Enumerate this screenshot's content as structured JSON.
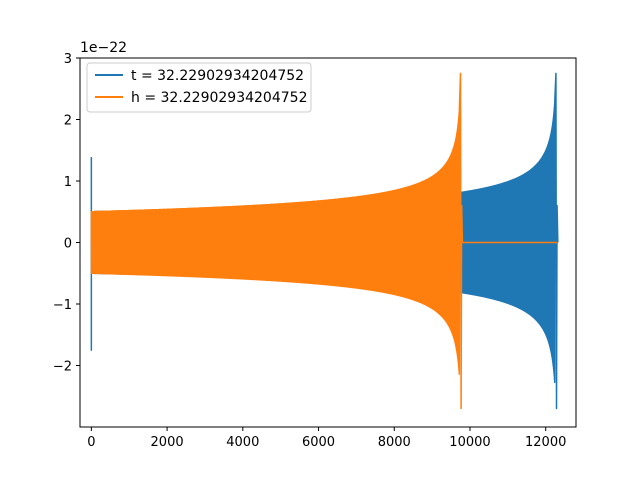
{
  "chart_data": {
    "type": "line",
    "title": "",
    "xlabel": "",
    "ylabel": "",
    "offset_text": "1e−22",
    "xlim": [
      -300,
      12800
    ],
    "ylim": [
      -3.0,
      3.0
    ],
    "xticks": [
      0,
      2000,
      4000,
      6000,
      8000,
      10000,
      12000
    ],
    "xtick_labels": [
      "0",
      "2000",
      "4000",
      "6000",
      "8000",
      "10000",
      "12000"
    ],
    "yticks": [
      -2,
      -1,
      0,
      1,
      2,
      3
    ],
    "ytick_labels": [
      "−2",
      "−1",
      "0",
      "1",
      "2",
      "3"
    ],
    "grid": false,
    "legend": {
      "placement": "upper-left",
      "entries": [
        "t = 32.22902934204752",
        "h = 32.22902934204752"
      ]
    },
    "series": [
      {
        "name": "t = 32.22902934204752",
        "color": "#1f77b4",
        "x_start": 0,
        "x_end": 12300,
        "initial_spike": [
          1.38,
          -1.75
        ],
        "amplitude_start": 0.5,
        "amplitude_end": 2.75,
        "peak_negative": -2.7,
        "description": "chirp waveform: amplitude ~0.5 at x=0 growing to ~2.75 at merger near x=12300, then ringdown to 0"
      },
      {
        "name": "h = 32.22902934204752",
        "color": "#ff7f0e",
        "x_start": 0,
        "x_end": 9780,
        "x_flat_end": 12300,
        "amplitude_start": 0.5,
        "amplitude_end": 2.75,
        "peak_negative": -2.7,
        "description": "chirp waveform: amplitude ~0.5 at x=0 growing to ~2.75 at merger near x=9780, then flat at 0"
      }
    ]
  }
}
